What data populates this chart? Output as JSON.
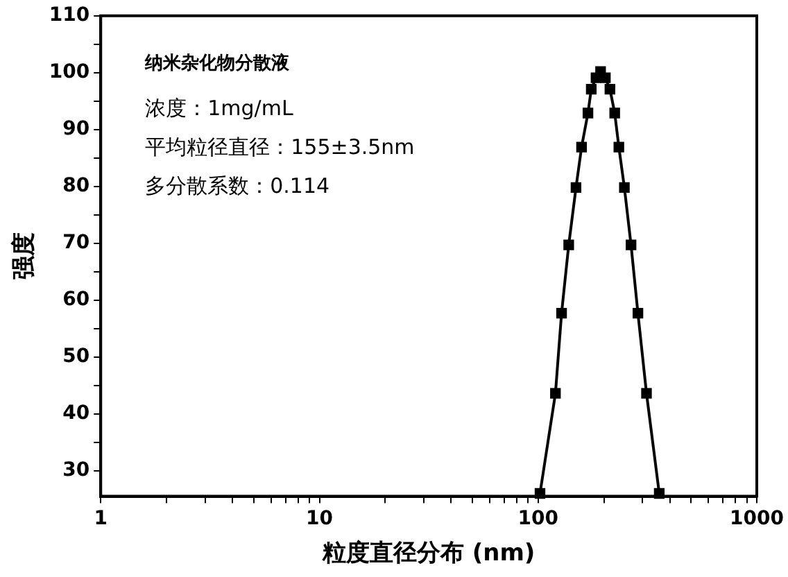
{
  "chart_data": {
    "type": "line",
    "xlabel": "粒度直径分布 (nm)",
    "ylabel": "强度",
    "annotations": [
      "纳米杂化物分散液",
      "浓度：1mg/mL",
      "平均粒径直径：155±3.5nm",
      "多分散系数：0.114"
    ],
    "log": "x",
    "grid": false,
    "legend": false,
    "marker": "square",
    "line_style": "solid",
    "xlim": [
      1,
      1000
    ],
    "ylim": [
      25.5,
      110
    ],
    "xticks": [
      1,
      {
        "value": 2,
        "label": null
      },
      {
        "value": 3,
        "label": null
      },
      {
        "value": 4,
        "label": null
      },
      {
        "value": 5,
        "label": null
      },
      {
        "value": 6,
        "label": null
      },
      {
        "value": 7,
        "label": null
      },
      {
        "value": 8,
        "label": null
      },
      {
        "value": 9,
        "label": null
      },
      10,
      {
        "value": 20,
        "label": null
      },
      {
        "value": 30,
        "label": null
      },
      {
        "value": 40,
        "label": null
      },
      {
        "value": 50,
        "label": null
      },
      {
        "value": 60,
        "label": null
      },
      {
        "value": 70,
        "label": null
      },
      {
        "value": 80,
        "label": null
      },
      {
        "value": 90,
        "label": null
      },
      100,
      {
        "value": 200,
        "label": null
      },
      {
        "value": 300,
        "label": null
      },
      {
        "value": 400,
        "label": null
      },
      {
        "value": 500,
        "label": null
      },
      {
        "value": 600,
        "label": null
      },
      {
        "value": 700,
        "label": null
      },
      {
        "value": 800,
        "label": null
      },
      {
        "value": 900,
        "label": null
      },
      1000
    ],
    "yticks": [
      30,
      {
        "value": 35,
        "label": null
      },
      40,
      {
        "value": 45,
        "label": null
      },
      50,
      {
        "value": 55,
        "label": null
      },
      60,
      {
        "value": 65,
        "label": null
      },
      70,
      {
        "value": 75,
        "label": null
      },
      80,
      {
        "value": 85,
        "label": null
      },
      90,
      {
        "value": 95,
        "label": null
      },
      100,
      {
        "value": 105,
        "label": null
      },
      110
    ],
    "x": [
      102,
      120,
      128,
      138,
      149,
      158,
      169,
      175,
      184,
      193,
      203,
      213,
      224,
      234,
      248,
      266,
      286,
      313,
      358
    ],
    "series": [
      {
        "color": "#000000",
        "values": [
          26,
          43.6,
          57.7,
          69.7,
          79.8,
          86.9,
          92.9,
          97.1,
          99.1,
          100.2,
          99.1,
          97.1,
          92.9,
          86.9,
          79.8,
          69.7,
          57.7,
          43.6,
          26
        ]
      }
    ]
  }
}
